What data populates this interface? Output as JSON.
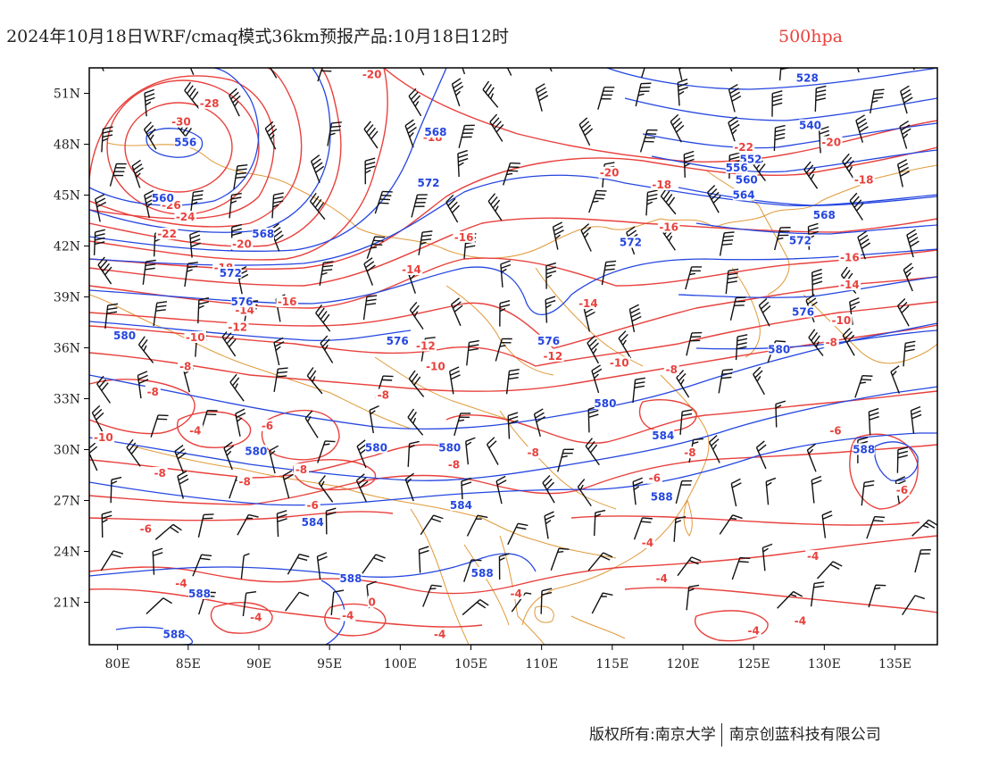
{
  "title": {
    "main": "2024年10月18日WRF/cmaq模式36km预报产品:10月18日12时",
    "level": "500hpa"
  },
  "credit": {
    "owner": "版权所有:南京大学",
    "company": "南京创蓝科技有限公司"
  },
  "colors": {
    "temperature": "#e8413d",
    "height": "#2446e0",
    "border": "#e09a3a",
    "wind": "#111111",
    "frame": "#000000"
  },
  "map": {
    "lon_range": [
      78,
      138
    ],
    "lat_range": [
      18.5,
      52.5
    ],
    "lon_ticks": [
      "80E",
      "85E",
      "90E",
      "95E",
      "100E",
      "105E",
      "110E",
      "115E",
      "120E",
      "125E",
      "130E",
      "135E"
    ],
    "lat_ticks": [
      "51N",
      "48N",
      "45N",
      "42N",
      "39N",
      "36N",
      "33N",
      "30N",
      "27N",
      "24N",
      "21N"
    ]
  },
  "chart_data": {
    "type": "contour_map",
    "temperature_labels": [
      {
        "text": "-28",
        "lon": 86.5,
        "lat": 50.3
      },
      {
        "text": "-30",
        "lon": 84.5,
        "lat": 49.2
      },
      {
        "text": "-26",
        "lon": 83.8,
        "lat": 44.3
      },
      {
        "text": "-24",
        "lon": 84.8,
        "lat": 43.6
      },
      {
        "text": "-22",
        "lon": 83.5,
        "lat": 42.6
      },
      {
        "text": "-20",
        "lon": 88.8,
        "lat": 42.0
      },
      {
        "text": "-18",
        "lon": 87.5,
        "lat": 40.6
      },
      {
        "text": "-16",
        "lon": 92.0,
        "lat": 38.6
      },
      {
        "text": "-14",
        "lon": 89.0,
        "lat": 38.1
      },
      {
        "text": "-12",
        "lon": 88.5,
        "lat": 37.1
      },
      {
        "text": "-10",
        "lon": 85.5,
        "lat": 36.5
      },
      {
        "text": "-8",
        "lon": 84.8,
        "lat": 34.8
      },
      {
        "text": "-8",
        "lon": 82.5,
        "lat": 33.3
      },
      {
        "text": "-10",
        "lon": 79.0,
        "lat": 30.6
      },
      {
        "text": "-4",
        "lon": 85.5,
        "lat": 31.0
      },
      {
        "text": "-6",
        "lon": 90.6,
        "lat": 31.3
      },
      {
        "text": "-8",
        "lon": 83.0,
        "lat": 28.5
      },
      {
        "text": "-8",
        "lon": 89.0,
        "lat": 28.0
      },
      {
        "text": "-8",
        "lon": 93.0,
        "lat": 28.7
      },
      {
        "text": "-6",
        "lon": 93.8,
        "lat": 26.6
      },
      {
        "text": "-6",
        "lon": 82.0,
        "lat": 25.2
      },
      {
        "text": "-20",
        "lon": 98.0,
        "lat": 52.0
      },
      {
        "text": "-18",
        "lon": 102.3,
        "lat": 48.3
      },
      {
        "text": "-20",
        "lon": 114.8,
        "lat": 46.2
      },
      {
        "text": "-18",
        "lon": 118.5,
        "lat": 45.5
      },
      {
        "text": "-16",
        "lon": 104.5,
        "lat": 42.4
      },
      {
        "text": "-14",
        "lon": 100.8,
        "lat": 40.5
      },
      {
        "text": "-16",
        "lon": 119.0,
        "lat": 43.0
      },
      {
        "text": "-14",
        "lon": 113.3,
        "lat": 38.5
      },
      {
        "text": "-12",
        "lon": 101.8,
        "lat": 36.0
      },
      {
        "text": "-12",
        "lon": 110.8,
        "lat": 35.4
      },
      {
        "text": "-10",
        "lon": 102.5,
        "lat": 34.8
      },
      {
        "text": "-10",
        "lon": 115.5,
        "lat": 35.0
      },
      {
        "text": "-8",
        "lon": 98.8,
        "lat": 33.1
      },
      {
        "text": "-8",
        "lon": 119.2,
        "lat": 34.6
      },
      {
        "text": "-8",
        "lon": 103.8,
        "lat": 29.0
      },
      {
        "text": "-8",
        "lon": 109.4,
        "lat": 29.7
      },
      {
        "text": "-6",
        "lon": 118.0,
        "lat": 28.2
      },
      {
        "text": "-8",
        "lon": 120.5,
        "lat": 29.7
      },
      {
        "text": "-22",
        "lon": 124.3,
        "lat": 47.7
      },
      {
        "text": "-20",
        "lon": 130.5,
        "lat": 48.0
      },
      {
        "text": "-18",
        "lon": 132.8,
        "lat": 45.8
      },
      {
        "text": "-16",
        "lon": 131.8,
        "lat": 41.2
      },
      {
        "text": "-14",
        "lon": 131.8,
        "lat": 39.6
      },
      {
        "text": "-10",
        "lon": 131.2,
        "lat": 37.5
      },
      {
        "text": "-8",
        "lon": 130.5,
        "lat": 36.2
      },
      {
        "text": "-6",
        "lon": 130.8,
        "lat": 31.0
      },
      {
        "text": "-6",
        "lon": 135.5,
        "lat": 27.5
      },
      {
        "text": "-4",
        "lon": 117.5,
        "lat": 24.4
      },
      {
        "text": "-4",
        "lon": 118.5,
        "lat": 22.3
      },
      {
        "text": "-4",
        "lon": 129.2,
        "lat": 23.6
      },
      {
        "text": "-4",
        "lon": 128.3,
        "lat": 19.8
      },
      {
        "text": "-4",
        "lon": 125.0,
        "lat": 19.2
      },
      {
        "text": "-4",
        "lon": 84.5,
        "lat": 22.0
      },
      {
        "text": "-4",
        "lon": 89.8,
        "lat": 20.0
      },
      {
        "text": "-4",
        "lon": 96.3,
        "lat": 20.1
      },
      {
        "text": "-4",
        "lon": 102.8,
        "lat": 19.0
      },
      {
        "text": "-4",
        "lon": 108.2,
        "lat": 21.4
      },
      {
        "text": "0",
        "lon": 98.0,
        "lat": 20.9
      }
    ],
    "height_labels": [
      {
        "text": "556",
        "lon": 84.8,
        "lat": 48.0
      },
      {
        "text": "560",
        "lon": 83.2,
        "lat": 44.7
      },
      {
        "text": "568",
        "lon": 90.3,
        "lat": 42.6
      },
      {
        "text": "572",
        "lon": 88.0,
        "lat": 40.3
      },
      {
        "text": "576",
        "lon": 88.8,
        "lat": 38.6
      },
      {
        "text": "580",
        "lon": 80.5,
        "lat": 36.6
      },
      {
        "text": "580",
        "lon": 89.8,
        "lat": 29.8
      },
      {
        "text": "584",
        "lon": 93.8,
        "lat": 25.6
      },
      {
        "text": "588",
        "lon": 84.0,
        "lat": 19.0
      },
      {
        "text": "588",
        "lon": 85.8,
        "lat": 21.4
      },
      {
        "text": "588",
        "lon": 96.5,
        "lat": 22.3
      },
      {
        "text": "568",
        "lon": 102.5,
        "lat": 48.6
      },
      {
        "text": "572",
        "lon": 102.0,
        "lat": 45.6
      },
      {
        "text": "576",
        "lon": 99.8,
        "lat": 36.3
      },
      {
        "text": "580",
        "lon": 98.3,
        "lat": 30.0
      },
      {
        "text": "580",
        "lon": 103.5,
        "lat": 30.0
      },
      {
        "text": "584",
        "lon": 104.3,
        "lat": 26.6
      },
      {
        "text": "588",
        "lon": 105.8,
        "lat": 22.6
      },
      {
        "text": "572",
        "lon": 116.3,
        "lat": 42.1
      },
      {
        "text": "576",
        "lon": 110.5,
        "lat": 36.3
      },
      {
        "text": "580",
        "lon": 114.5,
        "lat": 32.6
      },
      {
        "text": "584",
        "lon": 118.6,
        "lat": 30.7
      },
      {
        "text": "588",
        "lon": 118.5,
        "lat": 27.1
      },
      {
        "text": "528",
        "lon": 128.8,
        "lat": 51.8
      },
      {
        "text": "540",
        "lon": 129.0,
        "lat": 49.0
      },
      {
        "text": "552",
        "lon": 124.8,
        "lat": 47.0
      },
      {
        "text": "556",
        "lon": 123.8,
        "lat": 46.5
      },
      {
        "text": "560",
        "lon": 124.5,
        "lat": 45.8
      },
      {
        "text": "564",
        "lon": 124.3,
        "lat": 44.9
      },
      {
        "text": "568",
        "lon": 130.0,
        "lat": 43.7
      },
      {
        "text": "572",
        "lon": 128.3,
        "lat": 42.2
      },
      {
        "text": "576",
        "lon": 128.5,
        "lat": 38.0
      },
      {
        "text": "580",
        "lon": 126.8,
        "lat": 35.8
      },
      {
        "text": "588",
        "lon": 132.8,
        "lat": 29.9
      }
    ]
  }
}
